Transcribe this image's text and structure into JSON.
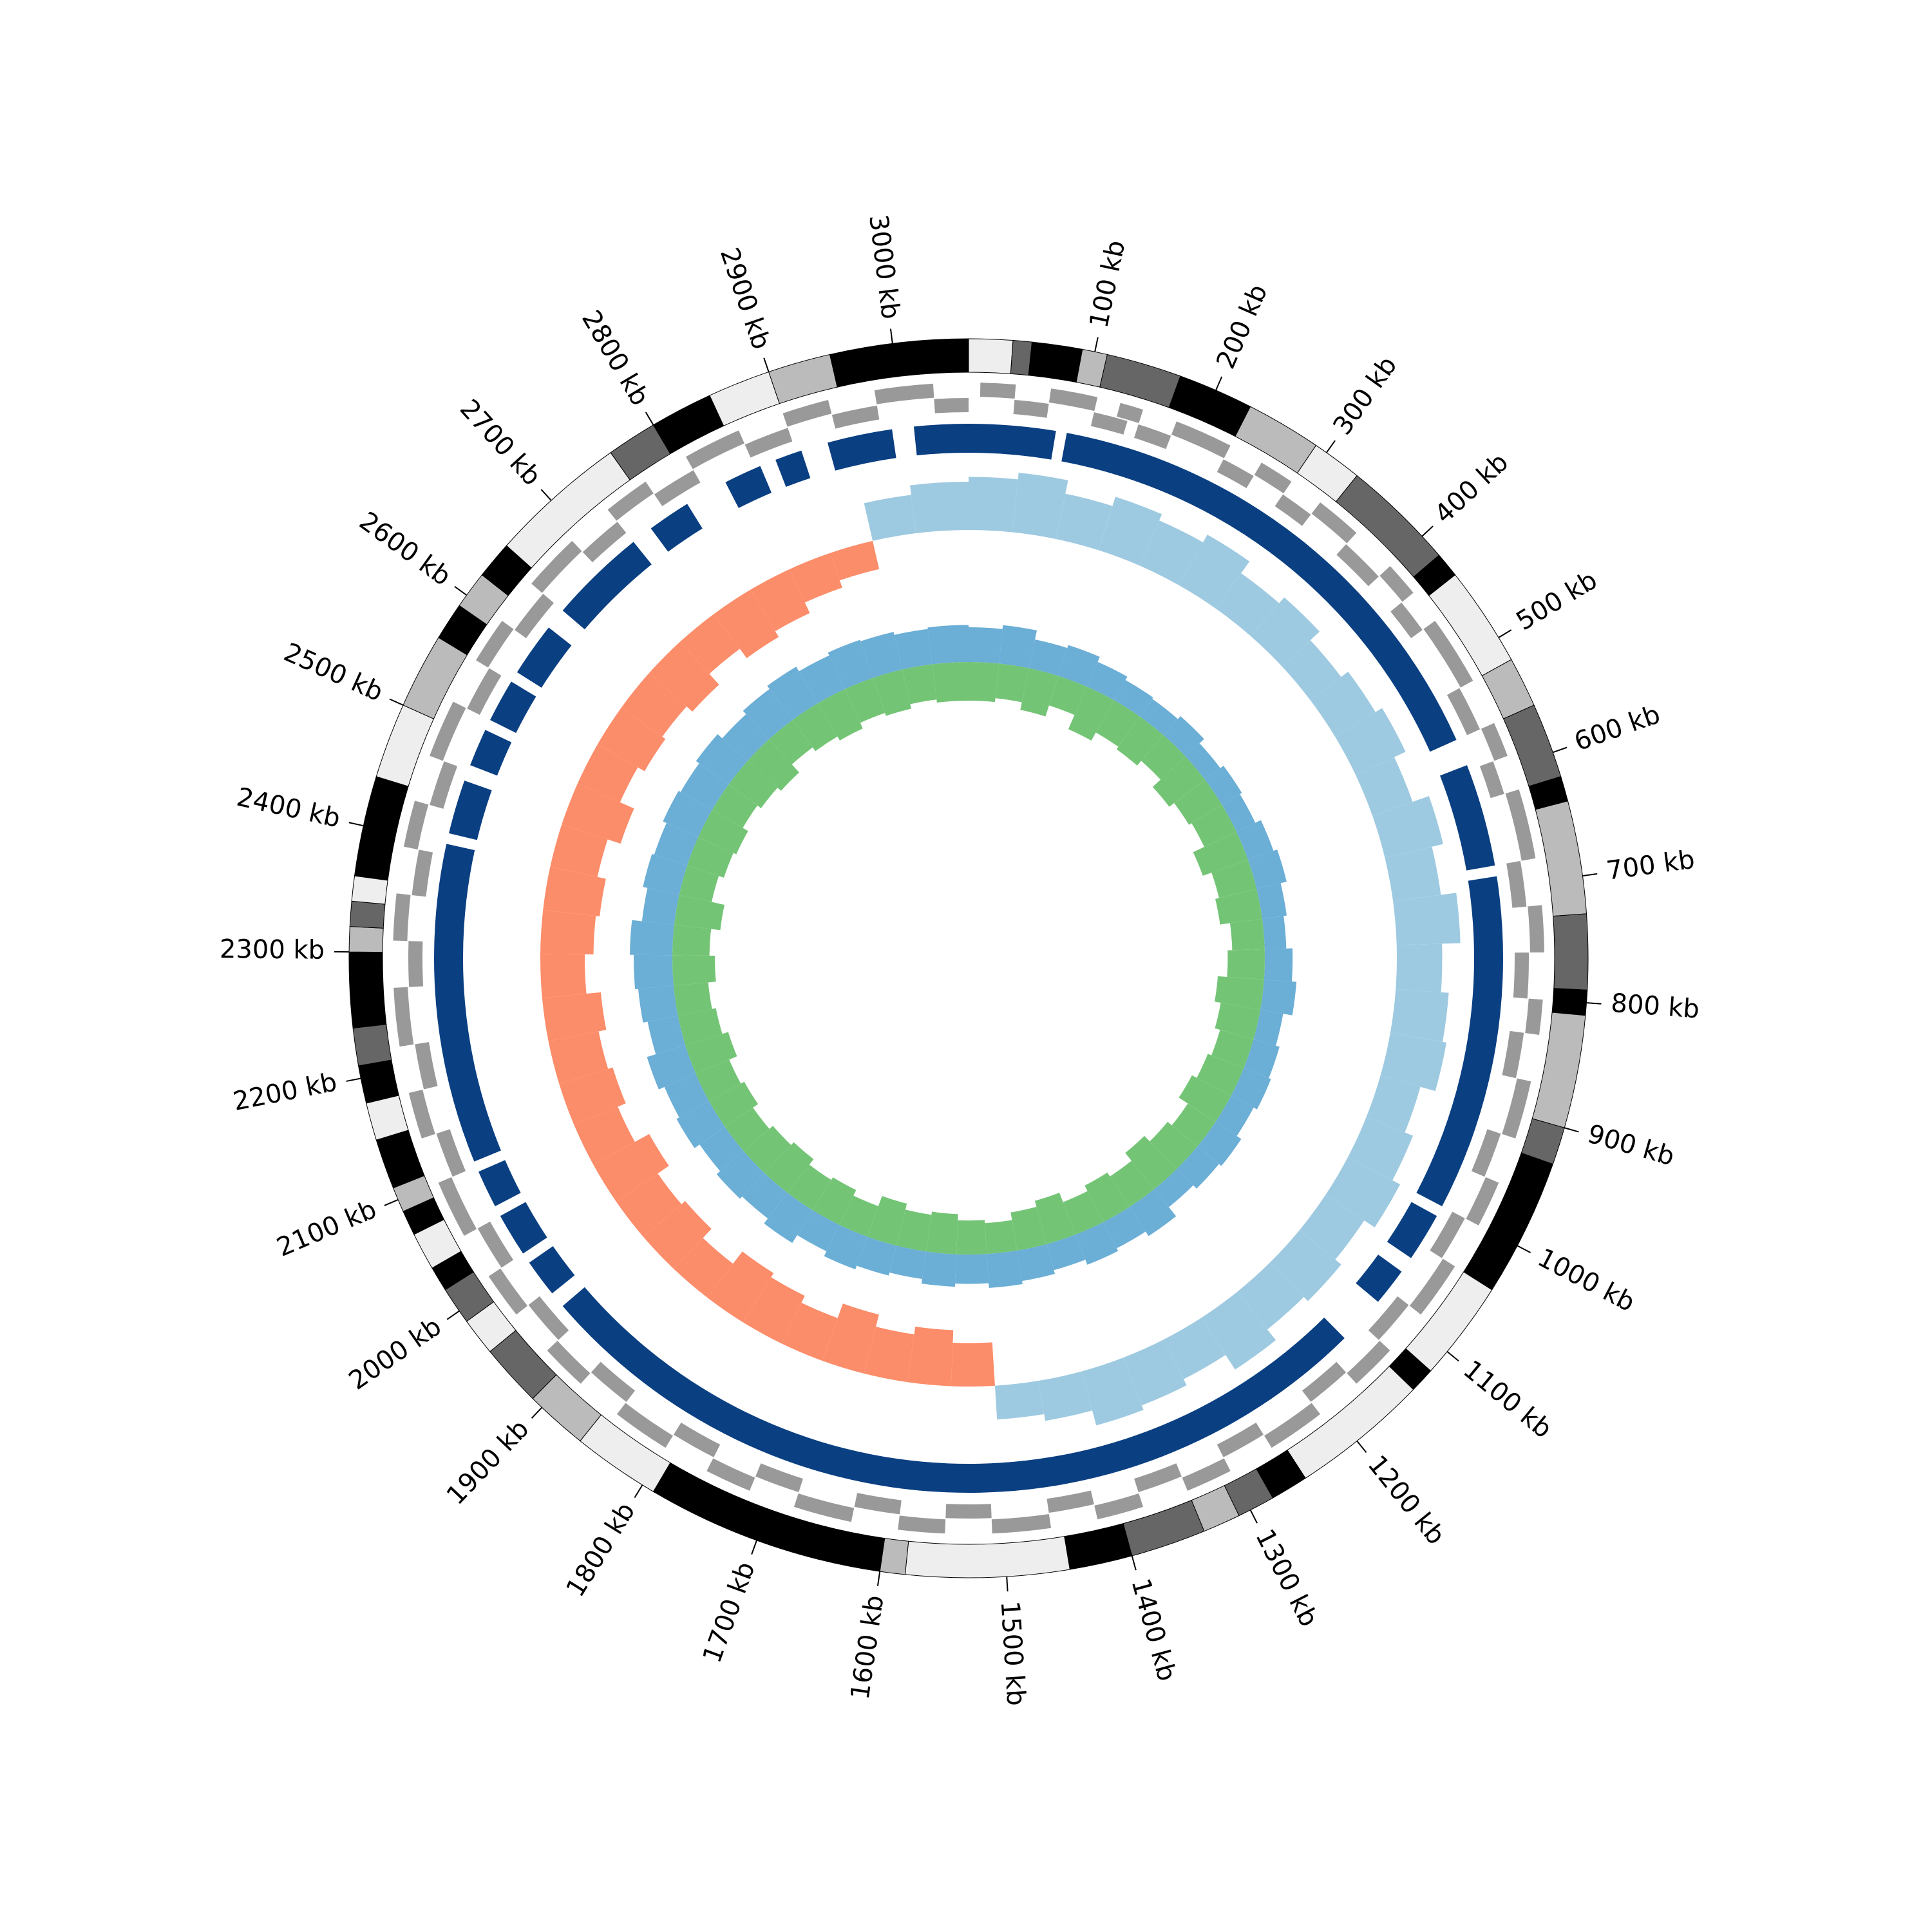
{
  "chart_data": {
    "type": "circos",
    "xlim": [
      0,
      3060
    ],
    "xticks": [
      {
        "value": 100,
        "label": "100 kb"
      },
      {
        "value": 200,
        "label": "200 kb"
      },
      {
        "value": 300,
        "label": "300 kb"
      },
      {
        "value": 400,
        "label": "400 kb"
      },
      {
        "value": 500,
        "label": "500 kb"
      },
      {
        "value": 600,
        "label": "600 kb"
      },
      {
        "value": 700,
        "label": "700 kb"
      },
      {
        "value": 800,
        "label": "800 kb"
      },
      {
        "value": 900,
        "label": "900 kb"
      },
      {
        "value": 1000,
        "label": "1000 kb"
      },
      {
        "value": 1100,
        "label": "1100 kb"
      },
      {
        "value": 1200,
        "label": "1200 kb"
      },
      {
        "value": 1300,
        "label": "1300 kb"
      },
      {
        "value": 1400,
        "label": "1400 kb"
      },
      {
        "value": 1500,
        "label": "1500 kb"
      },
      {
        "value": 1600,
        "label": "1600 kb"
      },
      {
        "value": 1700,
        "label": "1700 kb"
      },
      {
        "value": 1800,
        "label": "1800 kb"
      },
      {
        "value": 1900,
        "label": "1900 kb"
      },
      {
        "value": 2000,
        "label": "2000 kb"
      },
      {
        "value": 2100,
        "label": "2100 kb"
      },
      {
        "value": 2200,
        "label": "2200 kb"
      },
      {
        "value": 2300,
        "label": "2300 kb"
      },
      {
        "value": 2400,
        "label": "2400 kb"
      },
      {
        "value": 2500,
        "label": "2500 kb"
      },
      {
        "value": 2600,
        "label": "2600 kb"
      },
      {
        "value": 2700,
        "label": "2700 kb"
      },
      {
        "value": 2800,
        "label": "2800 kb"
      },
      {
        "value": 2900,
        "label": "2900 kb"
      },
      {
        "value": 3000,
        "label": "3000 kb"
      }
    ],
    "bands": [
      {
        "start": 0,
        "end": 35,
        "color": "#eeeeee"
      },
      {
        "start": 35,
        "end": 50,
        "color": "#666666"
      },
      {
        "start": 50,
        "end": 90,
        "color": "#000000"
      },
      {
        "start": 90,
        "end": 110,
        "color": "#bbbbbb"
      },
      {
        "start": 110,
        "end": 170,
        "color": "#666666"
      },
      {
        "start": 170,
        "end": 230,
        "color": "#000000"
      },
      {
        "start": 230,
        "end": 290,
        "color": "#bbbbbb"
      },
      {
        "start": 290,
        "end": 330,
        "color": "#eeeeee"
      },
      {
        "start": 330,
        "end": 420,
        "color": "#666666"
      },
      {
        "start": 420,
        "end": 440,
        "color": "#000000"
      },
      {
        "start": 440,
        "end": 520,
        "color": "#eeeeee"
      },
      {
        "start": 520,
        "end": 560,
        "color": "#bbbbbb"
      },
      {
        "start": 560,
        "end": 620,
        "color": "#666666"
      },
      {
        "start": 620,
        "end": 640,
        "color": "#000000"
      },
      {
        "start": 640,
        "end": 730,
        "color": "#bbbbbb"
      },
      {
        "start": 730,
        "end": 790,
        "color": "#666666"
      },
      {
        "start": 790,
        "end": 810,
        "color": "#000000"
      },
      {
        "start": 810,
        "end": 900,
        "color": "#bbbbbb"
      },
      {
        "start": 900,
        "end": 930,
        "color": "#666666"
      },
      {
        "start": 930,
        "end": 1040,
        "color": "#000000"
      },
      {
        "start": 1040,
        "end": 1120,
        "color": "#eeeeee"
      },
      {
        "start": 1120,
        "end": 1140,
        "color": "#000000"
      },
      {
        "start": 1140,
        "end": 1250,
        "color": "#eeeeee"
      },
      {
        "start": 1250,
        "end": 1280,
        "color": "#000000"
      },
      {
        "start": 1280,
        "end": 1310,
        "color": "#666666"
      },
      {
        "start": 1310,
        "end": 1340,
        "color": "#bbbbbb"
      },
      {
        "start": 1340,
        "end": 1400,
        "color": "#666666"
      },
      {
        "start": 1400,
        "end": 1450,
        "color": "#000000"
      },
      {
        "start": 1450,
        "end": 1580,
        "color": "#eeeeee"
      },
      {
        "start": 1580,
        "end": 1600,
        "color": "#bbbbbb"
      },
      {
        "start": 1600,
        "end": 1790,
        "color": "#000000"
      },
      {
        "start": 1790,
        "end": 1860,
        "color": "#eeeeee"
      },
      {
        "start": 1860,
        "end": 1910,
        "color": "#bbbbbb"
      },
      {
        "start": 1910,
        "end": 1960,
        "color": "#666666"
      },
      {
        "start": 1960,
        "end": 1990,
        "color": "#eeeeee"
      },
      {
        "start": 1990,
        "end": 2020,
        "color": "#666666"
      },
      {
        "start": 2020,
        "end": 2040,
        "color": "#000000"
      },
      {
        "start": 2040,
        "end": 2070,
        "color": "#eeeeee"
      },
      {
        "start": 2070,
        "end": 2090,
        "color": "#000000"
      },
      {
        "start": 2090,
        "end": 2110,
        "color": "#bbbbbb"
      },
      {
        "start": 2110,
        "end": 2150,
        "color": "#000000"
      },
      {
        "start": 2150,
        "end": 2180,
        "color": "#eeeeee"
      },
      {
        "start": 2180,
        "end": 2210,
        "color": "#000000"
      },
      {
        "start": 2210,
        "end": 2240,
        "color": "#666666"
      },
      {
        "start": 2240,
        "end": 2300,
        "color": "#000000"
      },
      {
        "start": 2300,
        "end": 2320,
        "color": "#bbbbbb"
      },
      {
        "start": 2320,
        "end": 2340,
        "color": "#666666"
      },
      {
        "start": 2340,
        "end": 2360,
        "color": "#eeeeee"
      },
      {
        "start": 2360,
        "end": 2440,
        "color": "#000000"
      },
      {
        "start": 2440,
        "end": 2500,
        "color": "#eeeeee"
      },
      {
        "start": 2500,
        "end": 2560,
        "color": "#bbbbbb"
      },
      {
        "start": 2560,
        "end": 2590,
        "color": "#000000"
      },
      {
        "start": 2590,
        "end": 2620,
        "color": "#bbbbbb"
      },
      {
        "start": 2620,
        "end": 2650,
        "color": "#000000"
      },
      {
        "start": 2650,
        "end": 2760,
        "color": "#eeeeee"
      },
      {
        "start": 2760,
        "end": 2800,
        "color": "#666666"
      },
      {
        "start": 2800,
        "end": 2850,
        "color": "#000000"
      },
      {
        "start": 2850,
        "end": 2900,
        "color": "#eeeeee"
      },
      {
        "start": 2900,
        "end": 2950,
        "color": "#bbbbbb"
      },
      {
        "start": 2950,
        "end": 3060,
        "color": "#000000"
      }
    ],
    "gene_color": "#999999",
    "genes_outer": [
      [
        10,
        40
      ],
      [
        70,
        110
      ],
      [
        130,
        150
      ],
      [
        180,
        230
      ],
      [
        260,
        290
      ],
      [
        320,
        360
      ],
      [
        400,
        430
      ],
      [
        460,
        520
      ],
      [
        560,
        590
      ],
      [
        620,
        680
      ],
      [
        720,
        760
      ],
      [
        800,
        830
      ],
      [
        870,
        920
      ],
      [
        960,
        1000
      ],
      [
        1040,
        1090
      ],
      [
        1130,
        1170
      ],
      [
        1210,
        1260
      ],
      [
        1300,
        1340
      ],
      [
        1380,
        1420
      ],
      [
        1460,
        1510
      ],
      [
        1550,
        1590
      ],
      [
        1630,
        1680
      ],
      [
        1720,
        1760
      ],
      [
        1800,
        1850
      ],
      [
        1890,
        1930
      ],
      [
        1970,
        2010
      ],
      [
        2050,
        2100
      ],
      [
        2140,
        2180
      ],
      [
        2220,
        2270
      ],
      [
        2310,
        2350
      ],
      [
        2390,
        2430
      ],
      [
        2470,
        2520
      ],
      [
        2560,
        2600
      ],
      [
        2640,
        2690
      ],
      [
        2730,
        2770
      ],
      [
        2810,
        2860
      ],
      [
        2900,
        2940
      ],
      [
        2980,
        3030
      ]
    ],
    "genes_inner": [
      [
        40,
        70
      ],
      [
        110,
        140
      ],
      [
        150,
        180
      ],
      [
        230,
        260
      ],
      [
        290,
        320
      ],
      [
        360,
        400
      ],
      [
        430,
        460
      ],
      [
        520,
        560
      ],
      [
        590,
        620
      ],
      [
        680,
        720
      ],
      [
        760,
        800
      ],
      [
        830,
        870
      ],
      [
        920,
        960
      ],
      [
        1000,
        1040
      ],
      [
        1090,
        1130
      ],
      [
        1170,
        1210
      ],
      [
        1260,
        1300
      ],
      [
        1340,
        1380
      ],
      [
        1420,
        1460
      ],
      [
        1510,
        1550
      ],
      [
        1590,
        1630
      ],
      [
        1680,
        1720
      ],
      [
        1760,
        1800
      ],
      [
        1850,
        1890
      ],
      [
        1930,
        1970
      ],
      [
        2010,
        2050
      ],
      [
        2100,
        2140
      ],
      [
        2180,
        2220
      ],
      [
        2270,
        2310
      ],
      [
        2350,
        2390
      ],
      [
        2430,
        2470
      ],
      [
        2520,
        2560
      ],
      [
        2600,
        2640
      ],
      [
        2690,
        2730
      ],
      [
        2770,
        2810
      ],
      [
        2860,
        2900
      ],
      [
        2940,
        2980
      ],
      [
        3030,
        3060
      ]
    ],
    "block_color": "#0a3f82",
    "blocks": [
      [
        0,
        80
      ],
      [
        90,
        560
      ],
      [
        585,
        680
      ],
      [
        690,
        1000
      ],
      [
        1010,
        1055
      ],
      [
        1070,
        1105
      ],
      [
        1150,
        1950
      ],
      [
        1965,
        2000
      ],
      [
        2010,
        2050
      ],
      [
        2060,
        2095
      ],
      [
        2105,
        2400
      ],
      [
        2410,
        2460
      ],
      [
        2475,
        2510
      ],
      [
        2520,
        2560
      ],
      [
        2570,
        2620
      ],
      [
        2640,
        2730
      ],
      [
        2750,
        2790
      ],
      [
        2830,
        2865
      ],
      [
        2880,
        2905
      ],
      [
        2930,
        2990
      ],
      [
        3010,
        3060
      ]
    ],
    "x": [
      0,
      50,
      100,
      150,
      200,
      250,
      300,
      350,
      400,
      450,
      500,
      550,
      600,
      650,
      700,
      750,
      800,
      850,
      900,
      950,
      1000,
      1050,
      1100,
      1150,
      1200,
      1250,
      1300,
      1350,
      1400,
      1450,
      1500,
      1550,
      1600,
      1650,
      1700,
      1750,
      1800,
      1850,
      1900,
      1950,
      2000,
      2050,
      2100,
      2150,
      2200,
      2250,
      2300,
      2350,
      2400,
      2450,
      2500,
      2550,
      2600,
      2650,
      2700,
      2750,
      2800,
      2850,
      2900,
      2950,
      3000
    ],
    "skew": {
      "ylim": [
        -1,
        1
      ],
      "positive_color": "#9ecae1",
      "negative_color": "#fc8d6a",
      "values": [
        0.55,
        0.62,
        0.48,
        0.58,
        0.51,
        0.6,
        0.45,
        0.53,
        0.4,
        0.49,
        0.57,
        0.44,
        0.62,
        0.5,
        0.66,
        0.47,
        0.55,
        0.59,
        0.43,
        0.52,
        0.61,
        0.48,
        0.56,
        0.5,
        0.64,
        0.46,
        0.53,
        0.58,
        0.42,
        0.35,
        -0.45,
        -0.58,
        -0.5,
        -0.63,
        -0.47,
        -0.55,
        -0.6,
        -0.44,
        -0.57,
        -0.52,
        -0.66,
        -0.49,
        -0.58,
        -0.53,
        -0.61,
        -0.46,
        -0.55,
        -0.59,
        -0.5,
        -0.64,
        -0.48,
        -0.56,
        -0.52,
        -0.6,
        -0.45,
        -0.57,
        -0.5,
        -0.38,
        -0.3,
        0.4,
        0.5
      ]
    },
    "inner": {
      "ylim": [
        -1,
        1
      ],
      "series": [
        {
          "color": "#6baed6",
          "values": [
            0.45,
            0.5,
            0.38,
            0.42,
            0.35,
            0.3,
            0.28,
            0.33,
            0.25,
            0.3,
            0.27,
            0.35,
            0.4,
            0.32,
            0.28,
            0.36,
            0.42,
            0.3,
            0.35,
            0.38,
            0.33,
            0.4,
            0.36,
            0.3,
            0.45,
            0.38,
            0.42,
            0.35,
            0.4,
            0.44,
            0.38,
            0.42,
            0.36,
            0.4,
            0.45,
            0.38,
            0.5,
            0.42,
            0.46,
            0.4,
            0.48,
            0.44,
            0.52,
            0.4,
            0.46,
            0.5,
            0.55,
            0.42,
            0.48,
            0.45,
            0.5,
            0.47,
            0.52,
            0.44,
            0.5,
            0.55,
            0.48,
            0.52,
            0.5,
            0.46,
            0.48
          ]
        },
        {
          "color": "#74c476",
          "values": [
            -0.5,
            -0.45,
            -0.55,
            -0.4,
            -0.6,
            -0.48,
            -0.52,
            -0.44,
            -0.58,
            -0.5,
            -0.46,
            -0.62,
            -0.5,
            -0.55,
            -0.42,
            -0.48,
            -0.6,
            -0.52,
            -0.45,
            -0.5,
            -0.57,
            -0.43,
            -0.5,
            -0.6,
            -0.47,
            -0.53,
            -0.45,
            -0.58,
            -0.5,
            -0.4,
            -0.44,
            -0.52,
            -0.48,
            -0.56,
            -0.42,
            -0.5,
            -0.46,
            -0.55,
            -0.5,
            -0.44,
            -0.52,
            -0.47,
            -0.58,
            -0.5,
            -0.45,
            -0.55,
            -0.48,
            -0.6,
            -0.43,
            -0.5,
            -0.54,
            -0.46,
            -0.52,
            -0.58,
            -0.44,
            -0.5,
            -0.56,
            -0.48,
            -0.52,
            -0.46,
            -0.5
          ]
        }
      ]
    }
  }
}
